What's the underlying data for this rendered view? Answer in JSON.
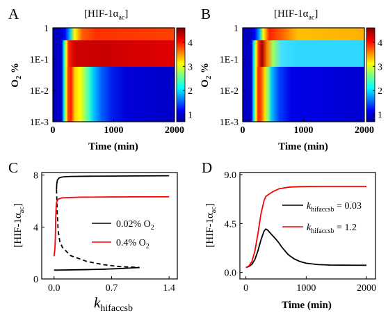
{
  "panels": {
    "A": {
      "label": "A",
      "title": "[HIF-1α",
      "title_sub": "ac",
      "title_close": "]"
    },
    "B": {
      "label": "B",
      "title": "[HIF-1α",
      "title_sub": "ac",
      "title_close": "]"
    },
    "C": {
      "label": "C"
    },
    "D": {
      "label": "D"
    }
  },
  "colors": {
    "black": "#000000",
    "red": "#ff0000"
  },
  "chart_data": [
    {
      "panel": "A",
      "type": "heatmap",
      "title": "[HIF-1α_ac]",
      "xlabel": "Time (min)",
      "ylabel": "O2 %",
      "ylabel_main": "O",
      "ylabel_sub": "2",
      "ylabel_rest": " %",
      "xlim": [
        0,
        2000
      ],
      "ylim": [
        0.001,
        1
      ],
      "yscale": "log",
      "xticks": [
        0,
        1000,
        2000
      ],
      "xtick_labels": [
        "0",
        "1000",
        "2000"
      ],
      "yticks": [
        1,
        0.1,
        0.01,
        0.001
      ],
      "ytick_labels": [
        "1",
        "1E-1",
        "1E-2",
        "1E-3"
      ],
      "colorbar": {
        "range": [
          0.7,
          4.6
        ],
        "ticks": [
          1,
          2,
          3,
          4
        ],
        "tick_labels": [
          "1",
          "2",
          "3",
          "4"
        ]
      }
    },
    {
      "panel": "B",
      "type": "heatmap",
      "title": "[HIF-1α_ac]",
      "xlabel": "Time (min)",
      "ylabel": "O2 %",
      "ylabel_main": "O",
      "ylabel_sub": "2",
      "ylabel_rest": " %",
      "xlim": [
        0,
        2000
      ],
      "ylim": [
        0.001,
        1
      ],
      "yscale": "log",
      "xticks": [
        0,
        1000,
        2000
      ],
      "xtick_labels": [
        "0",
        "1000",
        "2000"
      ],
      "yticks": [
        1,
        0.1,
        0.01,
        0.001
      ],
      "ytick_labels": [
        "1",
        "1E-1",
        "1E-2",
        "1E-3"
      ],
      "colorbar": {
        "range": [
          0.7,
          4.6
        ],
        "ticks": [
          1,
          2,
          3,
          4
        ],
        "tick_labels": [
          "1",
          "2",
          "3",
          "4"
        ]
      }
    },
    {
      "panel": "C",
      "type": "line",
      "xlabel_main": "k",
      "xlabel_sub": "hifaccsb",
      "ylabel_main": "[HIF-1α",
      "ylabel_sub": "ac",
      "ylabel_close": "]",
      "xlim": [
        -0.15,
        1.5
      ],
      "ylim": [
        0,
        8.2
      ],
      "xticks": [
        0,
        0.7,
        1.4
      ],
      "xtick_labels": [
        "0.0",
        "0.7",
        "1.4"
      ],
      "yticks": [
        0,
        4,
        8
      ],
      "ytick_labels": [
        "0",
        "4",
        "8"
      ],
      "legend": [
        {
          "text": "0.02% O",
          "sub": "2",
          "color": "#000000"
        },
        {
          "text": "0.4% O",
          "sub": "2",
          "color": "#ff0000"
        }
      ],
      "series": [
        {
          "name": "0.02% O2 (upper stable)",
          "color": "#000000",
          "dash": false,
          "points": [
            [
              0.03,
              6.9
            ],
            [
              0.033,
              7.3
            ],
            [
              0.04,
              7.6
            ],
            [
              0.06,
              7.78
            ],
            [
              0.1,
              7.86
            ],
            [
              0.2,
              7.9
            ],
            [
              0.5,
              7.92
            ],
            [
              1.4,
              7.95
            ]
          ]
        },
        {
          "name": "0.02% O2 (unstable)",
          "color": "#000000",
          "dash": true,
          "points": [
            [
              0.03,
              6.9
            ],
            [
              0.04,
              5.0
            ],
            [
              0.05,
              3.7
            ],
            [
              0.07,
              2.9
            ],
            [
              0.1,
              2.45
            ],
            [
              0.2,
              1.8
            ],
            [
              0.4,
              1.35
            ],
            [
              0.6,
              1.1
            ],
            [
              0.8,
              0.95
            ],
            [
              1.0,
              0.9
            ],
            [
              1.04,
              0.88
            ]
          ]
        },
        {
          "name": "0.02% O2 (lower stable)",
          "color": "#000000",
          "dash": false,
          "points": [
            [
              0.0,
              0.68
            ],
            [
              0.2,
              0.7
            ],
            [
              0.4,
              0.72
            ],
            [
              0.6,
              0.75
            ],
            [
              0.8,
              0.8
            ],
            [
              0.95,
              0.85
            ],
            [
              1.04,
              0.88
            ]
          ]
        },
        {
          "name": "0.4% O2",
          "color": "#ff0000",
          "dash": false,
          "points": [
            [
              0.0,
              1.75
            ],
            [
              0.01,
              2.3
            ],
            [
              0.015,
              3.0
            ],
            [
              0.02,
              4.6
            ],
            [
              0.025,
              5.5
            ],
            [
              0.03,
              5.9
            ],
            [
              0.05,
              6.15
            ],
            [
              0.1,
              6.25
            ],
            [
              0.3,
              6.3
            ],
            [
              0.7,
              6.32
            ],
            [
              1.4,
              6.33
            ]
          ]
        }
      ]
    },
    {
      "panel": "D",
      "type": "line",
      "xlabel": "Time (min)",
      "ylabel_main": "[HIF-1α",
      "ylabel_sub": "ac",
      "ylabel_close": "]",
      "xlim": [
        -100,
        2150
      ],
      "ylim": [
        -0.6,
        9.2
      ],
      "xticks": [
        0,
        1000,
        2000
      ],
      "xtick_labels": [
        "0",
        "1000",
        "2000"
      ],
      "yticks": [
        0,
        4.5,
        9
      ],
      "ytick_labels": [
        "0.0",
        "4.5",
        "9.0"
      ],
      "legend": [
        {
          "text_main": "k",
          "sub": "hifaccsb",
          "text_rest": " = 0.03",
          "color": "#000000"
        },
        {
          "text_main": "k",
          "sub": "hifaccsb",
          "text_rest": " = 1.2",
          "color": "#ff0000"
        }
      ],
      "series": [
        {
          "name": "k_hifaccsb = 0.03",
          "color": "#000000",
          "points": [
            [
              0,
              0.45
            ],
            [
              50,
              0.55
            ],
            [
              100,
              0.75
            ],
            [
              150,
              1.2
            ],
            [
              200,
              2.0
            ],
            [
              250,
              3.0
            ],
            [
              300,
              3.8
            ],
            [
              330,
              4.0
            ],
            [
              360,
              3.9
            ],
            [
              400,
              3.65
            ],
            [
              450,
              3.35
            ],
            [
              500,
              3.05
            ],
            [
              550,
              2.7
            ],
            [
              600,
              2.3
            ],
            [
              700,
              1.65
            ],
            [
              800,
              1.25
            ],
            [
              900,
              1.0
            ],
            [
              1000,
              0.85
            ],
            [
              1200,
              0.72
            ],
            [
              1400,
              0.68
            ],
            [
              1600,
              0.67
            ],
            [
              2000,
              0.66
            ]
          ]
        },
        {
          "name": "k_hifaccsb = 1.2",
          "color": "#ff0000",
          "points": [
            [
              0,
              0.45
            ],
            [
              50,
              0.6
            ],
            [
              100,
              1.0
            ],
            [
              150,
              2.0
            ],
            [
              200,
              3.6
            ],
            [
              250,
              5.4
            ],
            [
              300,
              6.6
            ],
            [
              330,
              7.0
            ],
            [
              380,
              7.2
            ],
            [
              450,
              7.45
            ],
            [
              550,
              7.7
            ],
            [
              700,
              7.85
            ],
            [
              900,
              7.9
            ],
            [
              1200,
              7.92
            ],
            [
              1600,
              7.92
            ],
            [
              2000,
              7.92
            ]
          ]
        }
      ]
    }
  ]
}
